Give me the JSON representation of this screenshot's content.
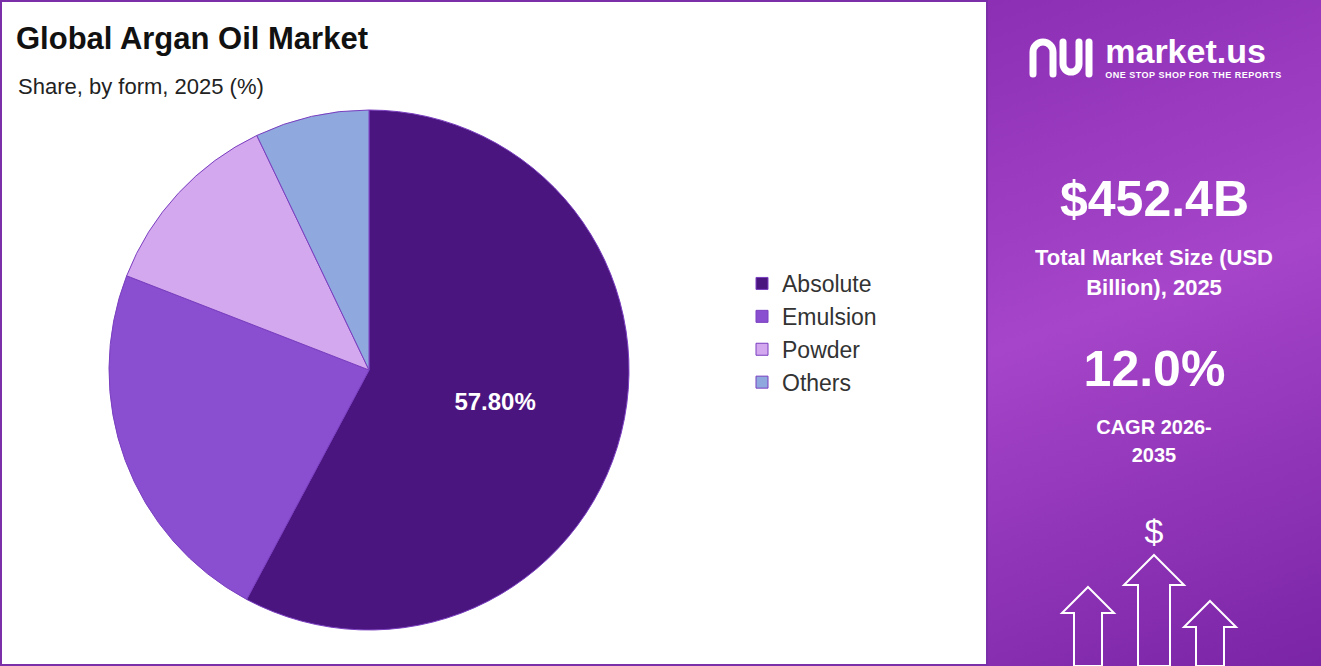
{
  "chart_data": {
    "type": "pie",
    "title": "Global Argan Oil Market",
    "subtitle": "Share, by form, 2025 (%)",
    "categories": [
      "Absolute",
      "Emulsion",
      "Powder",
      "Others"
    ],
    "values": [
      57.8,
      23.1,
      12.0,
      7.1
    ],
    "value_labels": [
      "57.80%",
      null,
      null,
      null
    ],
    "colors": [
      "#4b1580",
      "#8a4fd0",
      "#d4a8ee",
      "#8fa8de"
    ],
    "legend": "right"
  },
  "panel": {
    "brand": "market.us",
    "tagline": "ONE STOP SHOP FOR THE REPORTS",
    "market_size": "$452.4B",
    "market_size_label": "Total Market Size (USD Billion), 2025",
    "cagr": "12.0%",
    "cagr_label": "CAGR 2026-2035",
    "icon_symbol": "$"
  }
}
